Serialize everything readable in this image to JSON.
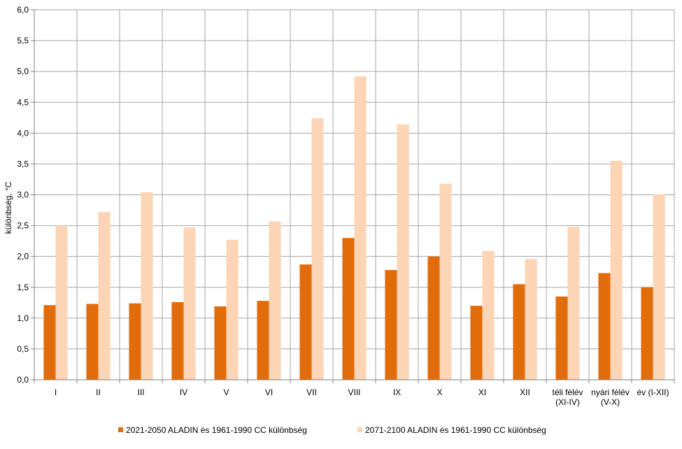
{
  "chart_data": {
    "type": "bar",
    "ylabel": "különbség, °C",
    "ylim": [
      0,
      6
    ],
    "ytick_step": 0.5,
    "yticks": [
      "0,0",
      "0,5",
      "1,0",
      "1,5",
      "2,0",
      "2,5",
      "3,0",
      "3,5",
      "4,0",
      "4,5",
      "5,0",
      "5,5",
      "6,0"
    ],
    "grid": true,
    "legend_position": "bottom",
    "categories": [
      [
        "I"
      ],
      [
        "II"
      ],
      [
        "III"
      ],
      [
        "IV"
      ],
      [
        "V"
      ],
      [
        "VI"
      ],
      [
        "VII"
      ],
      [
        "VIII"
      ],
      [
        "IX"
      ],
      [
        "X"
      ],
      [
        "XI"
      ],
      [
        "XII"
      ],
      [
        "téli félév",
        "(XI-IV)"
      ],
      [
        "nyári félév",
        "(V-X)"
      ],
      [
        "év (I-XII)"
      ]
    ],
    "series": [
      {
        "name": "2021-2050 ALADIN és 1961-1990 CC különbség",
        "color": "#E36C0A",
        "values": [
          1.21,
          1.23,
          1.24,
          1.26,
          1.19,
          1.28,
          1.87,
          2.3,
          1.78,
          2.0,
          1.2,
          1.55,
          1.35,
          1.73,
          1.5
        ]
      },
      {
        "name": "2071-2100 ALADIN és 1961-1990 CC különbség",
        "color": "#FBD5B5",
        "values": [
          2.5,
          2.72,
          3.04,
          2.47,
          2.27,
          2.57,
          4.24,
          4.92,
          4.14,
          3.18,
          2.09,
          1.96,
          2.48,
          3.55,
          3.01
        ]
      }
    ]
  }
}
